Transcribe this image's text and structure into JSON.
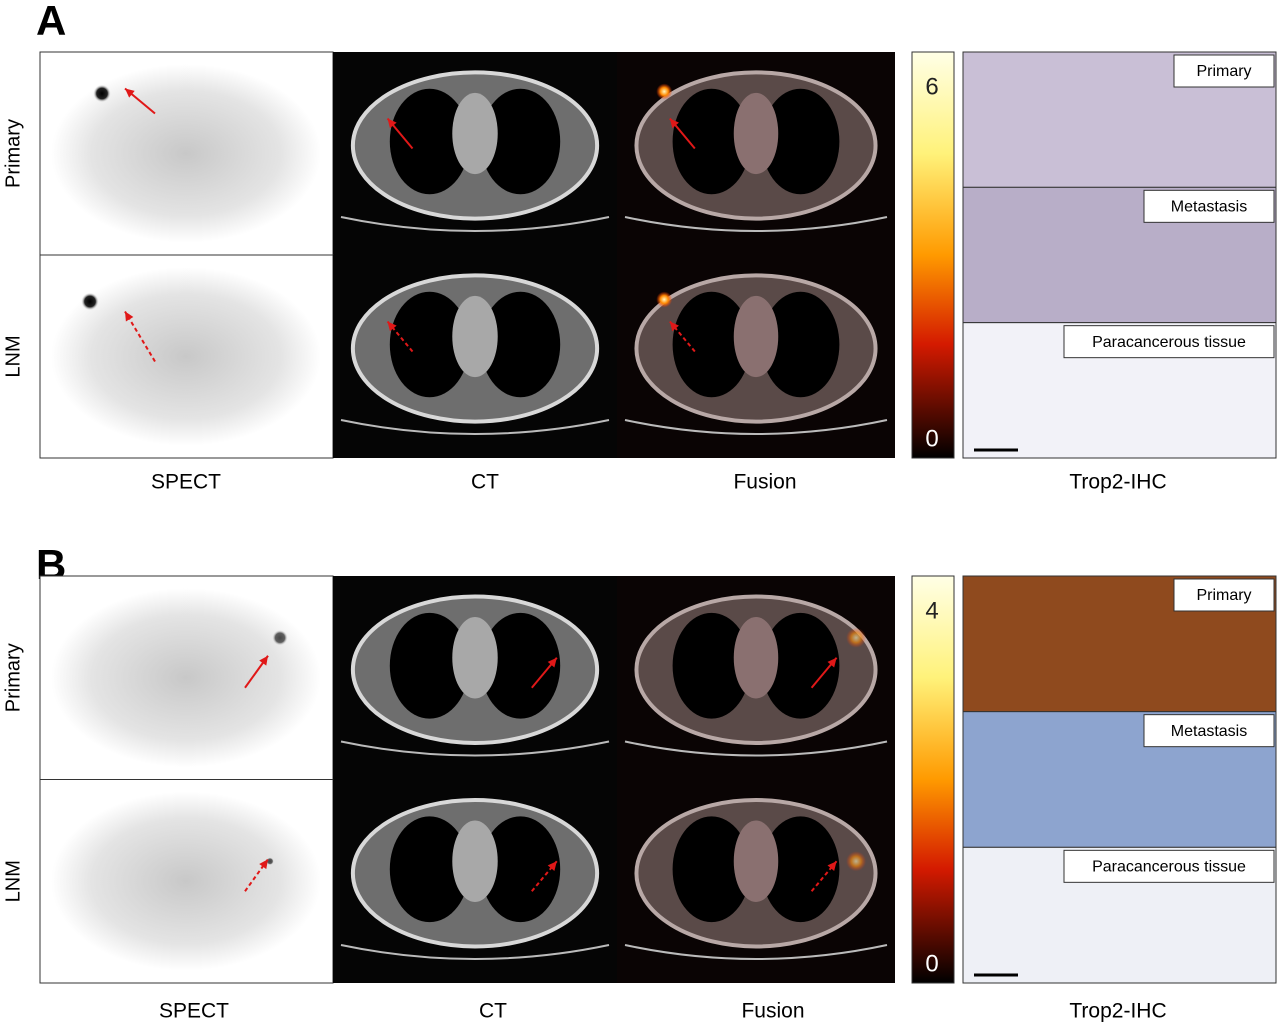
{
  "panels": [
    {
      "label": "A",
      "row_labels": [
        "Primary",
        "LNM"
      ],
      "column_labels": [
        "SPECT",
        "CT",
        "Fusion",
        "Trop2-IHC"
      ],
      "colorbar": {
        "max": 6,
        "min": 0
      },
      "ihc_labels": [
        "Primary",
        "Metastasis",
        "Paracancerous tissue"
      ]
    },
    {
      "label": "B",
      "row_labels": [
        "Primary",
        "LNM"
      ],
      "column_labels": [
        "SPECT",
        "CT",
        "Fusion",
        "Trop2-IHC"
      ],
      "colorbar": {
        "max": 4,
        "min": 0
      },
      "ihc_labels": [
        "Primary",
        "Metastasis",
        "Paracancerous tissue"
      ]
    }
  ]
}
